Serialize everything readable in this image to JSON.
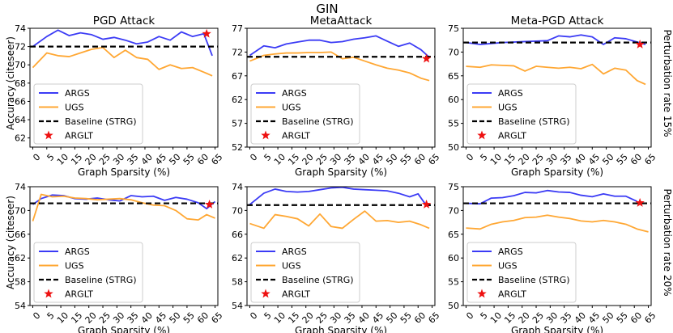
{
  "figure_title": "GIN",
  "xlabel": "Graph Sparsity (%)",
  "ylabel_left": "Accuracy (citeseer)",
  "row_labels": [
    "Perturbation rate 15%",
    "Perturbation rate 20%"
  ],
  "legend": [
    "ARGS",
    "UGS",
    "Baseline (STRG)",
    "ARGLT"
  ],
  "colors": {
    "args": "#3b3bf5",
    "ugs": "#ffa733",
    "baseline": "#000000",
    "arglt": "#ee1111"
  },
  "chart_data": [
    {
      "type": "line",
      "title": "PGD Attack",
      "row": 0,
      "col": 0,
      "xlim": [
        -1,
        66
      ],
      "ylim": [
        61,
        74
      ],
      "yticks": [
        62,
        64,
        66,
        68,
        70,
        72,
        74
      ],
      "xticks": [
        0,
        5,
        10,
        15,
        20,
        25,
        30,
        35,
        40,
        45,
        50,
        55,
        60,
        65
      ],
      "series": [
        {
          "name": "ARGS",
          "x": [
            0,
            5,
            9,
            13,
            17,
            21,
            25,
            29,
            33,
            37,
            41,
            45,
            49,
            53,
            57,
            61,
            64
          ],
          "y": [
            72.0,
            73.1,
            73.8,
            73.2,
            73.5,
            73.3,
            72.8,
            73.0,
            72.7,
            72.3,
            72.5,
            73.1,
            72.7,
            73.6,
            73.1,
            73.4,
            71.0
          ]
        },
        {
          "name": "UGS",
          "x": [
            0,
            5,
            9,
            13,
            17,
            21,
            25,
            29,
            33,
            37,
            41,
            45,
            49,
            53,
            57,
            61,
            64
          ],
          "y": [
            69.7,
            71.3,
            71.0,
            70.9,
            71.3,
            71.7,
            71.9,
            70.8,
            71.6,
            70.8,
            70.6,
            69.5,
            70.0,
            69.6,
            69.7,
            69.2,
            68.8
          ]
        },
        {
          "name": "Baseline (STRG)",
          "y": 72.0
        },
        {
          "name": "ARGLT",
          "x": [
            62
          ],
          "y": [
            73.4
          ]
        }
      ]
    },
    {
      "type": "line",
      "title": "MetaAttack",
      "row": 0,
      "col": 1,
      "xlim": [
        -1,
        66
      ],
      "ylim": [
        52,
        77
      ],
      "yticks": [
        52,
        57,
        62,
        67,
        72,
        77
      ],
      "xticks": [
        0,
        5,
        10,
        15,
        20,
        25,
        30,
        35,
        40,
        45,
        50,
        55,
        60,
        65
      ],
      "series": [
        {
          "name": "ARGS",
          "x": [
            0,
            5,
            9,
            13,
            17,
            21,
            25,
            29,
            33,
            37,
            41,
            45,
            49,
            53,
            57,
            61,
            64
          ],
          "y": [
            71.3,
            73.3,
            72.9,
            73.7,
            74.1,
            74.5,
            74.5,
            74.0,
            74.2,
            74.7,
            75.0,
            75.4,
            74.3,
            73.2,
            73.9,
            72.5,
            70.9
          ]
        },
        {
          "name": "UGS",
          "x": [
            0,
            5,
            9,
            13,
            17,
            21,
            25,
            29,
            33,
            37,
            41,
            45,
            49,
            53,
            57,
            61,
            64
          ],
          "y": [
            70.1,
            71.3,
            71.6,
            71.8,
            71.8,
            71.9,
            71.9,
            72.0,
            70.6,
            70.9,
            70.1,
            69.3,
            68.6,
            68.2,
            67.6,
            66.5,
            66.0
          ]
        },
        {
          "name": "Baseline (STRG)",
          "y": 71.0
        },
        {
          "name": "ARGLT",
          "x": [
            63
          ],
          "y": [
            70.6
          ]
        }
      ]
    },
    {
      "type": "line",
      "title": "Meta-PGD Attack",
      "row": 0,
      "col": 2,
      "xlim": [
        -1,
        66
      ],
      "ylim": [
        50,
        75
      ],
      "yticks": [
        50,
        55,
        60,
        65,
        70,
        75
      ],
      "xticks": [
        0,
        5,
        10,
        15,
        20,
        25,
        30,
        35,
        40,
        45,
        50,
        55,
        60,
        65
      ],
      "series": [
        {
          "name": "ARGS",
          "x": [
            0,
            5,
            9,
            13,
            17,
            21,
            25,
            29,
            33,
            37,
            41,
            45,
            49,
            53,
            57,
            61,
            64
          ],
          "y": [
            72.0,
            71.6,
            71.8,
            72.0,
            72.1,
            72.2,
            72.3,
            72.4,
            73.4,
            73.2,
            73.6,
            73.2,
            71.6,
            73.0,
            72.8,
            72.1,
            71.6
          ]
        },
        {
          "name": "UGS",
          "x": [
            0,
            5,
            9,
            13,
            17,
            21,
            25,
            29,
            33,
            37,
            41,
            45,
            49,
            53,
            57,
            61,
            64
          ],
          "y": [
            67.0,
            66.8,
            67.3,
            67.2,
            67.1,
            66.0,
            67.0,
            66.8,
            66.6,
            66.8,
            66.5,
            67.4,
            65.4,
            66.6,
            66.2,
            64.0,
            63.2
          ]
        },
        {
          "name": "Baseline (STRG)",
          "y": 72.0
        },
        {
          "name": "ARGLT",
          "x": [
            62
          ],
          "y": [
            71.6
          ]
        }
      ]
    },
    {
      "type": "line",
      "title": "",
      "row": 1,
      "col": 0,
      "xlim": [
        -1,
        66
      ],
      "ylim": [
        54,
        74
      ],
      "yticks": [
        54,
        58,
        62,
        66,
        70,
        74
      ],
      "xticks": [
        0,
        5,
        10,
        15,
        20,
        25,
        30,
        35,
        40,
        45,
        50,
        55,
        60,
        65
      ],
      "series": [
        {
          "name": "ARGS",
          "x": [
            0,
            3,
            7,
            11,
            15,
            19,
            23,
            27,
            31,
            35,
            39,
            43,
            47,
            51,
            55,
            59,
            62,
            65
          ],
          "y": [
            71.0,
            72.0,
            72.6,
            72.5,
            72.0,
            71.9,
            72.1,
            71.8,
            71.6,
            72.5,
            72.3,
            72.4,
            71.7,
            72.2,
            71.9,
            71.3,
            70.3,
            71.5
          ]
        },
        {
          "name": "UGS",
          "x": [
            0,
            3,
            7,
            11,
            15,
            19,
            23,
            27,
            31,
            35,
            39,
            43,
            47,
            51,
            55,
            59,
            62,
            65
          ],
          "y": [
            68.2,
            72.7,
            72.3,
            72.4,
            72.1,
            72.0,
            71.8,
            71.9,
            72.0,
            71.8,
            71.3,
            70.9,
            70.8,
            70.0,
            68.6,
            68.4,
            69.3,
            68.7
          ]
        },
        {
          "name": "Baseline (STRG)",
          "y": 71.2
        },
        {
          "name": "ARGLT",
          "x": [
            63
          ],
          "y": [
            71.0
          ]
        }
      ]
    },
    {
      "type": "line",
      "title": "",
      "row": 1,
      "col": 1,
      "xlim": [
        -1,
        66
      ],
      "ylim": [
        54,
        74
      ],
      "yticks": [
        54,
        58,
        62,
        66,
        70,
        74
      ],
      "xticks": [
        0,
        5,
        10,
        15,
        20,
        25,
        30,
        35,
        40,
        45,
        50,
        55,
        60,
        65
      ],
      "series": [
        {
          "name": "ARGS",
          "x": [
            0,
            5,
            9,
            13,
            17,
            21,
            25,
            29,
            33,
            37,
            41,
            45,
            49,
            53,
            57,
            60,
            63
          ],
          "y": [
            71.0,
            72.9,
            73.6,
            73.2,
            73.1,
            73.2,
            73.5,
            73.8,
            73.9,
            73.6,
            73.5,
            73.4,
            73.3,
            72.9,
            72.3,
            72.8,
            70.8
          ]
        },
        {
          "name": "UGS",
          "x": [
            0,
            5,
            9,
            13,
            17,
            21,
            25,
            29,
            33,
            37,
            41,
            45,
            49,
            53,
            57,
            61,
            64
          ],
          "y": [
            67.8,
            67.0,
            69.3,
            69.0,
            68.6,
            67.4,
            69.4,
            67.3,
            67.0,
            68.5,
            69.9,
            68.2,
            68.3,
            68.0,
            68.2,
            67.6,
            67.0
          ]
        },
        {
          "name": "Baseline (STRG)",
          "y": 70.9
        },
        {
          "name": "ARGLT",
          "x": [
            63
          ],
          "y": [
            71.0
          ]
        }
      ]
    },
    {
      "type": "line",
      "title": "",
      "row": 1,
      "col": 2,
      "xlim": [
        -1,
        66
      ],
      "ylim": [
        50,
        75
      ],
      "yticks": [
        50,
        55,
        60,
        65,
        70,
        75
      ],
      "xticks": [
        0,
        5,
        10,
        15,
        20,
        25,
        30,
        35,
        40,
        45,
        50,
        55,
        60,
        65
      ],
      "series": [
        {
          "name": "ARGS",
          "x": [
            0,
            5,
            9,
            13,
            17,
            21,
            25,
            29,
            33,
            37,
            41,
            45,
            49,
            53,
            57,
            61
          ],
          "y": [
            71.5,
            71.4,
            72.6,
            72.7,
            73.1,
            73.8,
            73.7,
            74.2,
            73.9,
            73.8,
            73.2,
            72.9,
            73.5,
            73.0,
            73.0,
            71.9
          ]
        },
        {
          "name": "UGS",
          "x": [
            0,
            5,
            9,
            13,
            17,
            21,
            25,
            29,
            33,
            37,
            41,
            45,
            49,
            53,
            57,
            61,
            65
          ],
          "y": [
            66.3,
            66.1,
            67.1,
            67.6,
            67.9,
            68.5,
            68.6,
            69.0,
            68.6,
            68.3,
            67.8,
            67.6,
            67.9,
            67.6,
            67.1,
            66.1,
            65.5
          ]
        },
        {
          "name": "Baseline (STRG)",
          "y": 71.5
        },
        {
          "name": "ARGLT",
          "x": [
            62
          ],
          "y": [
            71.6
          ]
        }
      ]
    }
  ]
}
